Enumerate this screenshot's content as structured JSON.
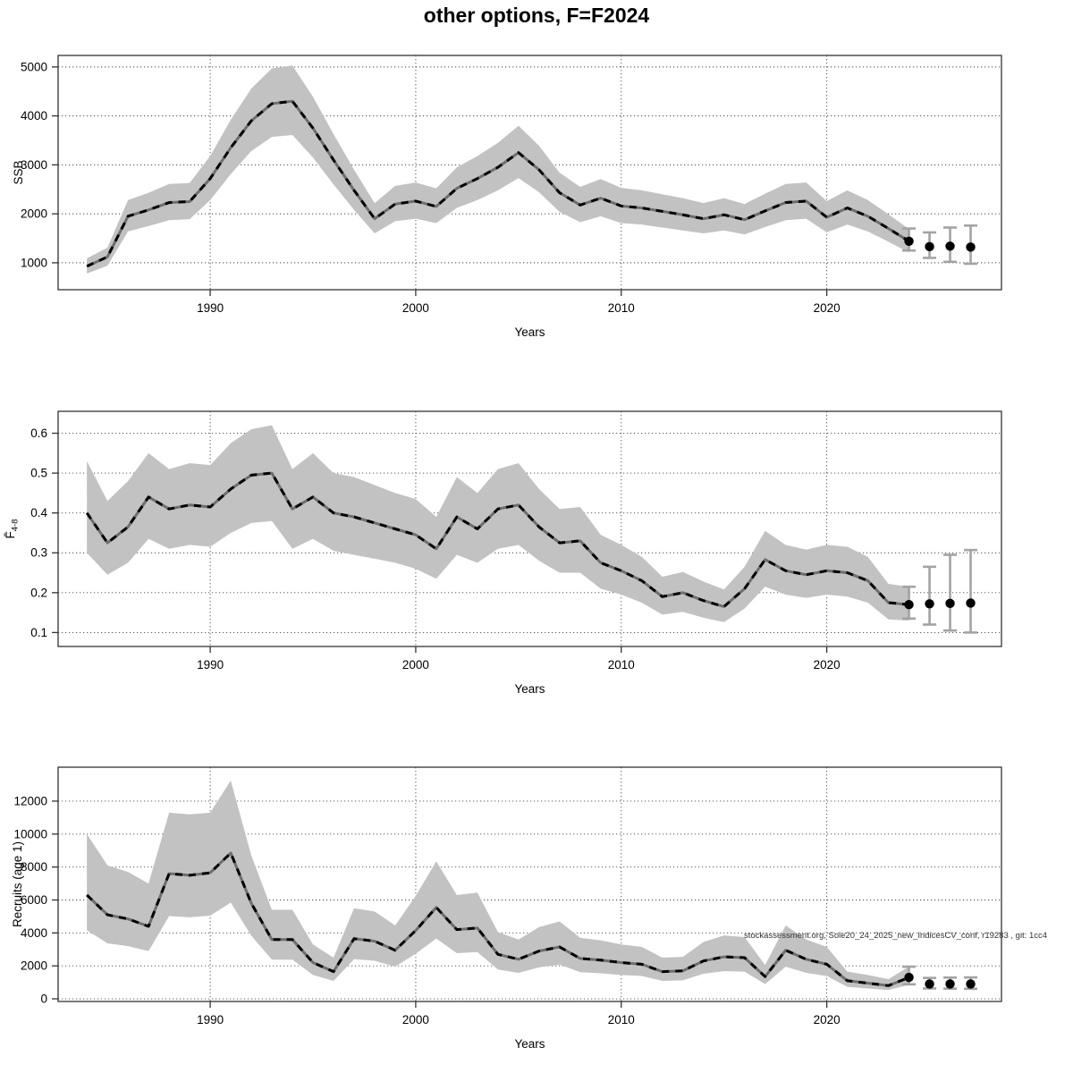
{
  "title": "other options, F=F2024",
  "annotation": "stockassessment.org, Sole20_24_2025_new_IndicesCV_conf, r19283 , git: 1cc4",
  "colors": {
    "ribbon": "#c2c2c2",
    "line_under": "#6e6e6e",
    "line_dash": "#000000",
    "dot": "#000000",
    "errorbar": "#a3a3a3",
    "grid": "#444444",
    "frame": "#333333",
    "text": "#000000",
    "annotation_text": "#333333"
  },
  "chart_data": [
    {
      "type": "line",
      "name": "ssb",
      "ylabel": "SSB",
      "ylabel_sub": "",
      "xlabel": "Years",
      "grid": true,
      "xlim": [
        1982.6,
        2028.5
      ],
      "ylim": [
        450,
        5235
      ],
      "xticks": [
        1990,
        2000,
        2010,
        2020
      ],
      "xtick_labels": [
        "1990",
        "2000",
        "2010",
        "2020"
      ],
      "yticks": [
        1000,
        2000,
        3000,
        4000,
        5000
      ],
      "ytick_labels": [
        "1000",
        "2000",
        "3000",
        "4000",
        "5000"
      ],
      "x": [
        1984,
        1985,
        1986,
        1987,
        1988,
        1989,
        1990,
        1991,
        1992,
        1993,
        1994,
        1995,
        1996,
        1997,
        1998,
        1999,
        2000,
        2001,
        2002,
        2003,
        2004,
        2005,
        2006,
        2007,
        2008,
        2009,
        2010,
        2011,
        2012,
        2013,
        2014,
        2015,
        2016,
        2017,
        2018,
        2019,
        2020,
        2021,
        2022,
        2023,
        2024
      ],
      "med": [
        930,
        1120,
        1950,
        2080,
        2230,
        2250,
        2720,
        3350,
        3900,
        4250,
        4300,
        3750,
        3100,
        2480,
        1900,
        2200,
        2260,
        2150,
        2520,
        2720,
        2950,
        3250,
        2900,
        2430,
        2180,
        2320,
        2160,
        2120,
        2050,
        1980,
        1900,
        1980,
        1880,
        2060,
        2230,
        2260,
        1930,
        2120,
        1950,
        1700,
        1440
      ],
      "lo": [
        780,
        940,
        1640,
        1750,
        1870,
        1890,
        2280,
        2810,
        3280,
        3570,
        3610,
        3150,
        2600,
        2080,
        1600,
        1850,
        1900,
        1810,
        2120,
        2280,
        2480,
        2730,
        2440,
        2040,
        1830,
        1950,
        1810,
        1780,
        1720,
        1660,
        1600,
        1660,
        1580,
        1730,
        1870,
        1900,
        1620,
        1780,
        1640,
        1430,
        1210
      ],
      "hi": [
        1090,
        1310,
        2280,
        2430,
        2610,
        2630,
        3180,
        3920,
        4560,
        4970,
        5030,
        4390,
        3630,
        2900,
        2220,
        2570,
        2640,
        2520,
        2950,
        3180,
        3450,
        3800,
        3390,
        2840,
        2550,
        2710,
        2530,
        2480,
        2400,
        2320,
        2220,
        2320,
        2200,
        2410,
        2610,
        2640,
        2260,
        2480,
        2280,
        1990,
        1690
      ],
      "forecast": {
        "x": [
          2024,
          2025,
          2026,
          2027
        ],
        "med": [
          1440,
          1330,
          1340,
          1320
        ],
        "lo": [
          1250,
          1100,
          1020,
          980
        ],
        "hi": [
          1700,
          1620,
          1720,
          1760
        ]
      }
    },
    {
      "type": "line",
      "name": "fbar",
      "ylabel": "F̄",
      "ylabel_sub": "4-8",
      "xlabel": "Years",
      "grid": true,
      "xlim": [
        1982.6,
        2028.5
      ],
      "ylim": [
        0.065,
        0.655
      ],
      "xticks": [
        1990,
        2000,
        2010,
        2020
      ],
      "xtick_labels": [
        "1990",
        "2000",
        "2010",
        "2020"
      ],
      "yticks": [
        0.1,
        0.2,
        0.3,
        0.4,
        0.5,
        0.6
      ],
      "ytick_labels": [
        "0.1",
        "0.2",
        "0.3",
        "0.4",
        "0.5",
        "0.6"
      ],
      "x": [
        1984,
        1985,
        1986,
        1987,
        1988,
        1989,
        1990,
        1991,
        1992,
        1993,
        1994,
        1995,
        1996,
        1997,
        1998,
        1999,
        2000,
        2001,
        2002,
        2003,
        2004,
        2005,
        2006,
        2007,
        2008,
        2009,
        2010,
        2011,
        2012,
        2013,
        2014,
        2015,
        2016,
        2017,
        2018,
        2019,
        2020,
        2021,
        2022,
        2023,
        2024
      ],
      "med": [
        0.4,
        0.325,
        0.365,
        0.44,
        0.41,
        0.42,
        0.415,
        0.46,
        0.495,
        0.5,
        0.41,
        0.44,
        0.4,
        0.39,
        0.375,
        0.36,
        0.345,
        0.31,
        0.39,
        0.36,
        0.41,
        0.42,
        0.365,
        0.325,
        0.33,
        0.275,
        0.255,
        0.23,
        0.19,
        0.2,
        0.18,
        0.165,
        0.21,
        0.283,
        0.255,
        0.245,
        0.255,
        0.25,
        0.23,
        0.175,
        0.17
      ],
      "lo": [
        0.3,
        0.245,
        0.275,
        0.335,
        0.31,
        0.32,
        0.315,
        0.35,
        0.375,
        0.38,
        0.31,
        0.335,
        0.305,
        0.295,
        0.285,
        0.275,
        0.26,
        0.235,
        0.295,
        0.275,
        0.31,
        0.32,
        0.28,
        0.25,
        0.25,
        0.21,
        0.195,
        0.175,
        0.145,
        0.152,
        0.137,
        0.126,
        0.16,
        0.215,
        0.195,
        0.187,
        0.195,
        0.19,
        0.175,
        0.133,
        0.13
      ],
      "hi": [
        0.53,
        0.43,
        0.48,
        0.55,
        0.51,
        0.525,
        0.52,
        0.575,
        0.61,
        0.62,
        0.51,
        0.55,
        0.5,
        0.49,
        0.47,
        0.45,
        0.435,
        0.39,
        0.49,
        0.45,
        0.51,
        0.525,
        0.46,
        0.41,
        0.415,
        0.345,
        0.32,
        0.29,
        0.24,
        0.252,
        0.228,
        0.208,
        0.265,
        0.355,
        0.32,
        0.308,
        0.32,
        0.315,
        0.29,
        0.222,
        0.215
      ],
      "forecast": {
        "x": [
          2024,
          2025,
          2026,
          2027
        ],
        "med": [
          0.17,
          0.172,
          0.173,
          0.174
        ],
        "lo": [
          0.135,
          0.12,
          0.105,
          0.1
        ],
        "hi": [
          0.215,
          0.265,
          0.295,
          0.307
        ]
      }
    },
    {
      "type": "line",
      "name": "recruits",
      "ylabel": "Recruits (age 1)",
      "ylabel_sub": "",
      "xlabel": "Years",
      "grid": true,
      "xlim": [
        1982.6,
        2028.5
      ],
      "ylim": [
        -160,
        14060
      ],
      "xticks": [
        1990,
        2000,
        2010,
        2020
      ],
      "xtick_labels": [
        "1990",
        "2000",
        "2010",
        "2020"
      ],
      "yticks": [
        0,
        2000,
        4000,
        6000,
        8000,
        10000,
        12000
      ],
      "ytick_labels": [
        "0",
        "2000",
        "4000",
        "6000",
        "8000",
        "10000",
        "12000"
      ],
      "x": [
        1984,
        1985,
        1986,
        1987,
        1988,
        1989,
        1990,
        1991,
        1992,
        1993,
        1994,
        1995,
        1996,
        1997,
        1998,
        1999,
        2000,
        2001,
        2002,
        2003,
        2004,
        2005,
        2006,
        2007,
        2008,
        2009,
        2010,
        2011,
        2012,
        2013,
        2014,
        2015,
        2016,
        2017,
        2018,
        2019,
        2020,
        2021,
        2022,
        2023,
        2024
      ],
      "med": [
        6300,
        5100,
        4850,
        4400,
        7600,
        7500,
        7650,
        8850,
        5800,
        3600,
        3600,
        2200,
        1650,
        3650,
        3500,
        2950,
        4150,
        5550,
        4200,
        4300,
        2700,
        2400,
        2900,
        3150,
        2450,
        2350,
        2200,
        2100,
        1650,
        1700,
        2300,
        2550,
        2500,
        1350,
        2950,
        2400,
        2100,
        1100,
        950,
        800,
        1300
      ],
      "lo": [
        4160,
        3370,
        3200,
        2900,
        5020,
        4950,
        5050,
        5840,
        3830,
        2380,
        2380,
        1450,
        1090,
        2410,
        2310,
        1950,
        2740,
        3660,
        2770,
        2840,
        1780,
        1580,
        1910,
        2080,
        1620,
        1550,
        1450,
        1390,
        1090,
        1120,
        1520,
        1680,
        1650,
        890,
        1950,
        1580,
        1390,
        730,
        630,
        530,
        860
      ],
      "hi": [
        10000,
        8100,
        7700,
        7000,
        11300,
        11200,
        11300,
        13250,
        8700,
        5400,
        5400,
        3300,
        2500,
        5500,
        5300,
        4450,
        6250,
        8350,
        6300,
        6450,
        4050,
        3600,
        4350,
        4700,
        3700,
        3550,
        3300,
        3150,
        2500,
        2550,
        3450,
        3850,
        3750,
        2050,
        4450,
        3600,
        3150,
        1650,
        1450,
        1200,
        1950
      ],
      "forecast": {
        "x": [
          2024,
          2025,
          2026,
          2027
        ],
        "med": [
          1300,
          900,
          900,
          900
        ],
        "lo": [
          880,
          630,
          620,
          610
        ],
        "hi": [
          1950,
          1270,
          1290,
          1300
        ]
      }
    }
  ]
}
